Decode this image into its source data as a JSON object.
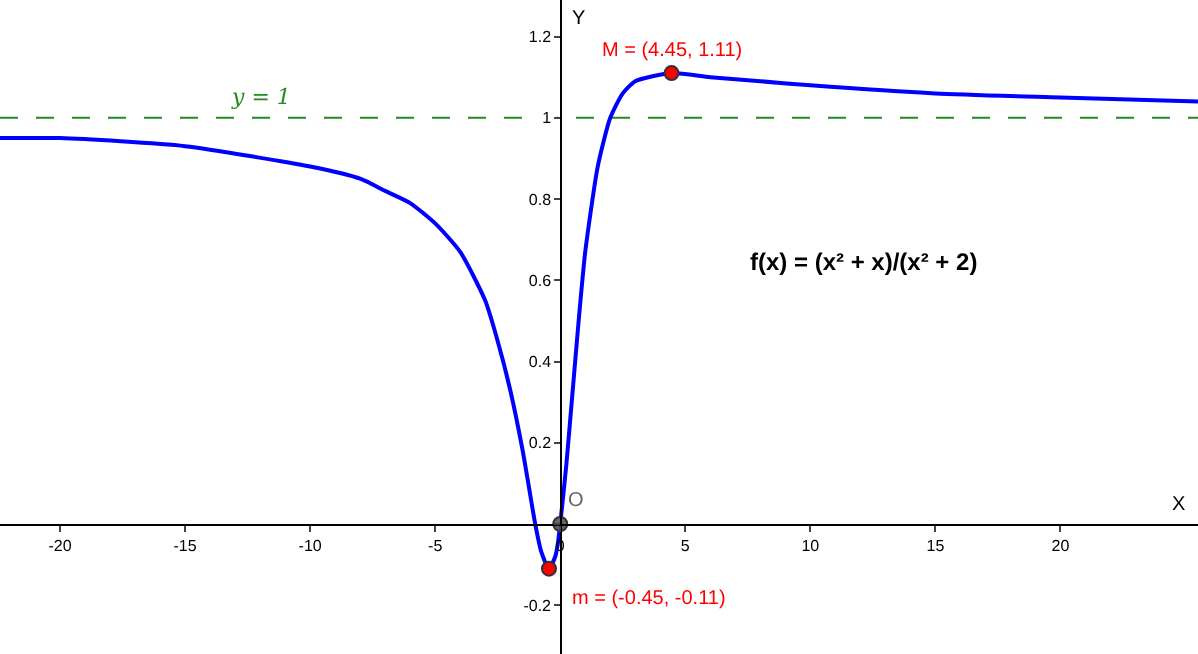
{
  "chart_data": {
    "type": "line",
    "xlabel": "X",
    "ylabel": "Y",
    "xlim": [
      -22.4,
      25.5
    ],
    "ylim": [
      -0.32,
      1.29
    ],
    "xticks": [
      -20,
      -15,
      -10,
      -5,
      0,
      5,
      10,
      15,
      20
    ],
    "yticks": [
      -0.2,
      {
        "value": 0,
        "label": null
      },
      0.2,
      0.4,
      0.6,
      0.8,
      1,
      1.2
    ],
    "grid": false,
    "series": [
      {
        "color": "#0000ff",
        "marker": "none",
        "line_style": "solid",
        "x": [
          -22.4,
          -20,
          -15,
          -10,
          -8,
          -7,
          -6,
          -5,
          -4,
          -3,
          -2.5,
          -2,
          -1.5,
          -1.25,
          -1,
          -0.75,
          -0.45,
          -0.2,
          -0.1,
          0,
          0.25,
          0.5,
          0.75,
          1,
          1.5,
          2,
          2.5,
          3,
          4.45,
          6,
          8,
          10,
          15,
          20,
          25.5
        ],
        "values": [
          0.95,
          0.95,
          0.93,
          0.88,
          0.85,
          0.82,
          0.79,
          0.74,
          0.67,
          0.55,
          0.45,
          0.33,
          0.18,
          0.09,
          0,
          -0.07,
          -0.11,
          -0.08,
          -0.05,
          0,
          0.15,
          0.33,
          0.51,
          0.67,
          0.88,
          1,
          1.06,
          1.09,
          1.11,
          1.1,
          1.09,
          1.08,
          1.06,
          1.05,
          1.04
        ]
      },
      {
        "type": "scatter",
        "marker": "circle",
        "x": [
          -0.45,
          0,
          4.45
        ],
        "values": [
          -0.11,
          0,
          1.11
        ],
        "colors": [
          "#ff0000",
          "#666666",
          "#ff0000"
        ]
      }
    ],
    "ref_lines": [
      {
        "axis": "y",
        "value": 1,
        "label": "y = 1",
        "color": "#228b22",
        "line_style": "dashed"
      }
    ],
    "annotations": [
      {
        "text": "M = (4.45, 1.11)",
        "x": 4.45,
        "y": 1.11
      },
      {
        "text": "m = (-0.45, -0.11)",
        "x": -0.45,
        "y": -0.11
      },
      {
        "text": "O",
        "x": 0,
        "y": 0
      },
      "f(x) = (x² + x)/(x² + 2)"
    ]
  }
}
